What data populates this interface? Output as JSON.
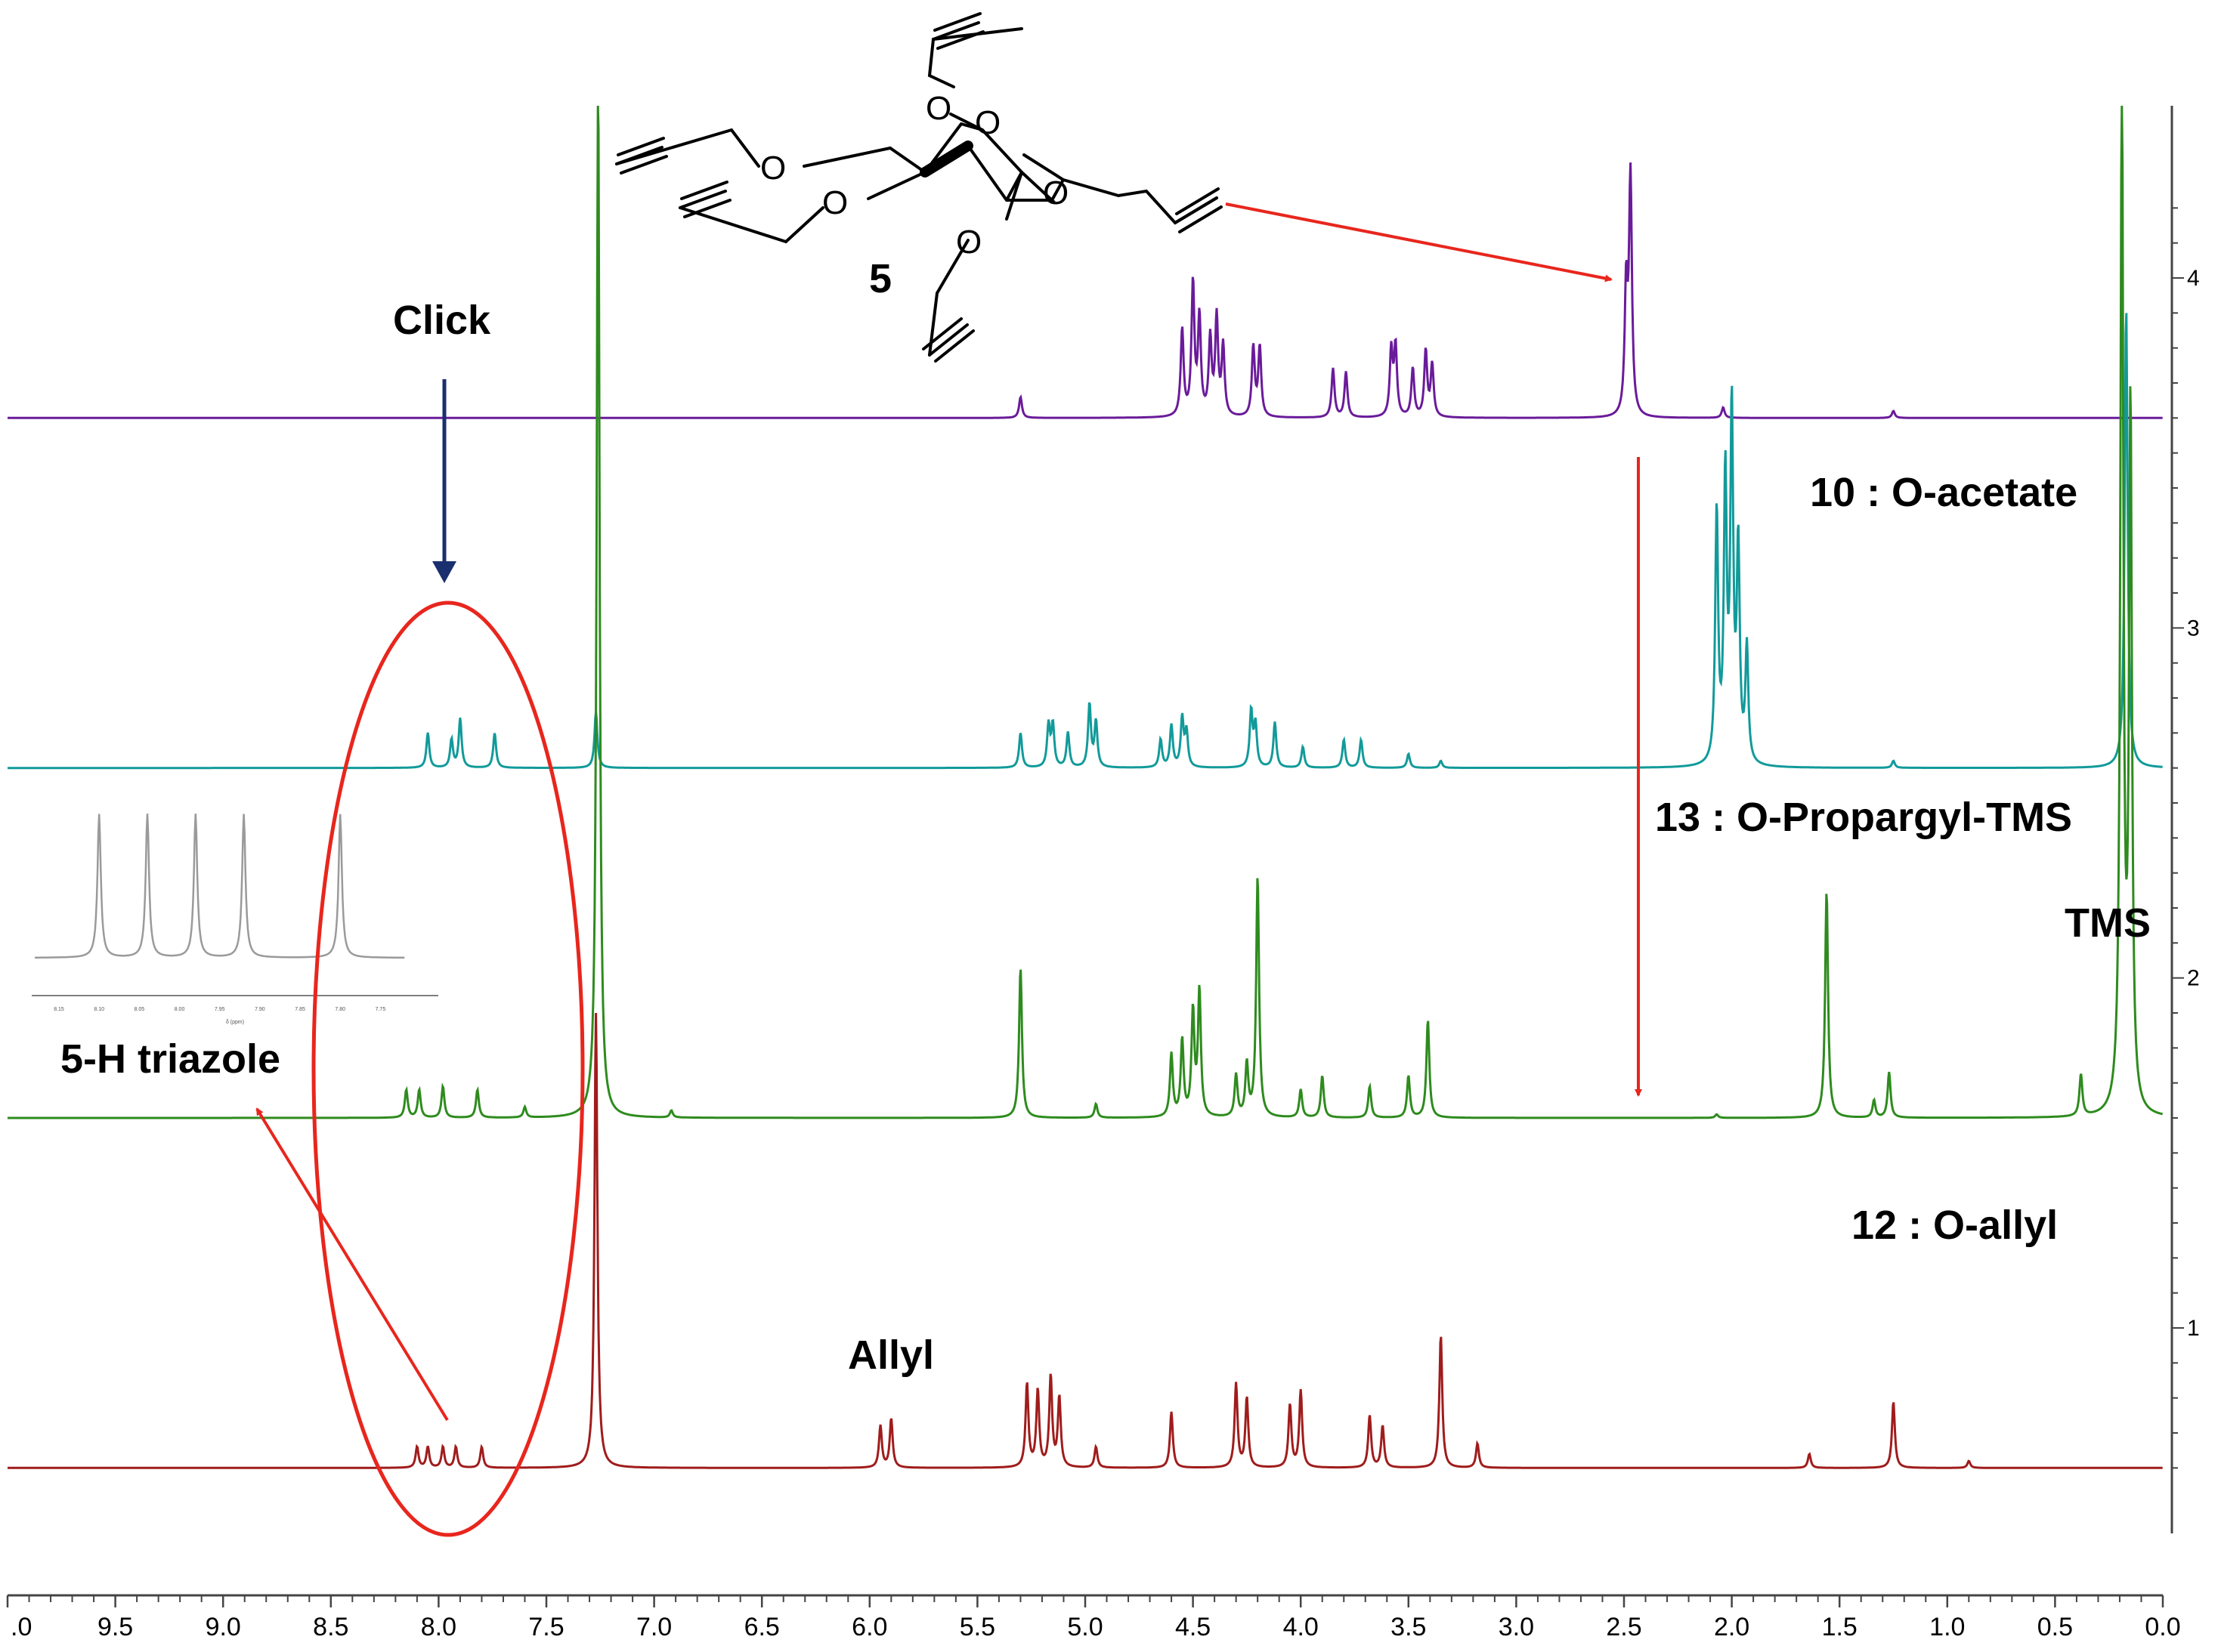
{
  "chart_data": {
    "type": "line",
    "title": "",
    "xlabel": "",
    "ylabel": "",
    "xlim": [
      10.0,
      0.0
    ],
    "x_ticks": [
      ".0",
      "9.5",
      "9.0",
      "8.5",
      "8.0",
      "7.5",
      "7.0",
      "6.5",
      "6.0",
      "5.5",
      "5.0",
      "4.5",
      "4.0",
      "3.5",
      "3.0",
      "2.5",
      "2.0",
      "1.5",
      "1.0",
      "0.5",
      "0.0"
    ],
    "y_ticks": [
      "4",
      "3",
      "2",
      "1"
    ],
    "series": [
      {
        "name": "5",
        "color": "#6a1b9a",
        "baseline": 3.6,
        "peaks": [
          [
            5.3,
            0.06
          ],
          [
            4.55,
            0.25
          ],
          [
            4.5,
            0.38
          ],
          [
            4.47,
            0.28
          ],
          [
            4.42,
            0.22
          ],
          [
            4.39,
            0.28
          ],
          [
            4.36,
            0.2
          ],
          [
            4.22,
            0.2
          ],
          [
            4.19,
            0.2
          ],
          [
            3.85,
            0.14
          ],
          [
            3.79,
            0.13
          ],
          [
            3.58,
            0.19
          ],
          [
            3.56,
            0.2
          ],
          [
            3.48,
            0.14
          ],
          [
            3.42,
            0.19
          ],
          [
            3.39,
            0.15
          ],
          [
            2.49,
            0.36
          ],
          [
            2.47,
            0.68
          ],
          [
            2.04,
            0.03
          ],
          [
            1.25,
            0.02
          ]
        ]
      },
      {
        "name": "10 : O-acetate",
        "color": "#129a9a",
        "baseline": 2.6,
        "peaks": [
          [
            8.05,
            0.1
          ],
          [
            7.94,
            0.08
          ],
          [
            7.9,
            0.14
          ],
          [
            7.74,
            0.1
          ],
          [
            7.27,
            0.16
          ],
          [
            5.3,
            0.1
          ],
          [
            5.17,
            0.12
          ],
          [
            5.15,
            0.12
          ],
          [
            5.08,
            0.1
          ],
          [
            4.98,
            0.18
          ],
          [
            4.95,
            0.13
          ],
          [
            4.65,
            0.08
          ],
          [
            4.6,
            0.12
          ],
          [
            4.55,
            0.14
          ],
          [
            4.53,
            0.1
          ],
          [
            4.23,
            0.16
          ],
          [
            4.21,
            0.12
          ],
          [
            4.12,
            0.13
          ],
          [
            3.99,
            0.06
          ],
          [
            3.8,
            0.08
          ],
          [
            3.72,
            0.08
          ],
          [
            3.5,
            0.04
          ],
          [
            3.35,
            0.02
          ],
          [
            2.07,
            0.72
          ],
          [
            2.03,
            0.81
          ],
          [
            2.0,
            1.0
          ],
          [
            1.97,
            0.61
          ],
          [
            1.93,
            0.33
          ],
          [
            1.25,
            0.02
          ],
          [
            0.17,
            1.32
          ]
        ]
      },
      {
        "name": "13 : O-Propargyl-TMS",
        "color": "#2e8b1e",
        "baseline": 1.6,
        "peaks": [
          [
            8.15,
            0.08
          ],
          [
            8.09,
            0.08
          ],
          [
            7.98,
            0.09
          ],
          [
            7.82,
            0.08
          ],
          [
            7.6,
            0.03
          ],
          [
            7.26,
            3.0
          ],
          [
            6.92,
            0.02
          ],
          [
            5.3,
            0.43
          ],
          [
            4.95,
            0.04
          ],
          [
            4.6,
            0.18
          ],
          [
            4.55,
            0.22
          ],
          [
            4.5,
            0.3
          ],
          [
            4.47,
            0.36
          ],
          [
            4.3,
            0.12
          ],
          [
            4.25,
            0.15
          ],
          [
            4.2,
            0.69
          ],
          [
            4.0,
            0.08
          ],
          [
            3.9,
            0.12
          ],
          [
            3.68,
            0.09
          ],
          [
            3.5,
            0.12
          ],
          [
            3.41,
            0.28
          ],
          [
            2.07,
            0.01
          ],
          [
            1.56,
            0.65
          ],
          [
            1.34,
            0.05
          ],
          [
            1.27,
            0.13
          ],
          [
            0.38,
            0.12
          ],
          [
            0.19,
            3.0
          ],
          [
            0.15,
            2.0
          ]
        ]
      },
      {
        "name": "12 : O-allyl",
        "color": "#a01c1c",
        "baseline": 0.6,
        "peaks": [
          [
            8.1,
            0.06
          ],
          [
            8.05,
            0.06
          ],
          [
            7.98,
            0.06
          ],
          [
            7.92,
            0.06
          ],
          [
            7.8,
            0.06
          ],
          [
            7.27,
            1.3
          ],
          [
            5.95,
            0.12
          ],
          [
            5.9,
            0.14
          ],
          [
            5.27,
            0.24
          ],
          [
            5.22,
            0.22
          ],
          [
            5.16,
            0.26
          ],
          [
            5.12,
            0.2
          ],
          [
            4.95,
            0.06
          ],
          [
            4.6,
            0.16
          ],
          [
            4.3,
            0.24
          ],
          [
            4.25,
            0.2
          ],
          [
            4.05,
            0.18
          ],
          [
            4.0,
            0.22
          ],
          [
            3.68,
            0.15
          ],
          [
            3.62,
            0.12
          ],
          [
            3.35,
            0.38
          ],
          [
            3.18,
            0.07
          ],
          [
            1.64,
            0.04
          ],
          [
            1.25,
            0.19
          ],
          [
            0.9,
            0.02
          ]
        ]
      }
    ],
    "annotations": {
      "compound_number": "5",
      "click": "Click",
      "acetate": "10 : O-acetate",
      "propargyl": "13 : O-Propargyl-TMS",
      "tms": "TMS",
      "allyl_compound": "12 : O-allyl",
      "triazole": "5-H triazole",
      "allyl": "Allyl"
    },
    "structure_atoms": {
      "o_ring": "O",
      "o_1": "O",
      "o_2": "O",
      "o_3": "O",
      "o_4": "O",
      "o_6": "O"
    },
    "inset": {
      "x_ticks": [
        "8.15",
        "8.10",
        "8.05",
        "8.00",
        "7.95",
        "7.90",
        "7.85",
        "7.80",
        "7.75"
      ],
      "xlabel": "δ (ppm)",
      "peaks": [
        8.1,
        8.04,
        7.98,
        7.92,
        7.8
      ]
    }
  },
  "colors": {
    "red_annotation": "#e8261d",
    "navy_arrow": "#1a2f6e",
    "axis": "#444444"
  }
}
